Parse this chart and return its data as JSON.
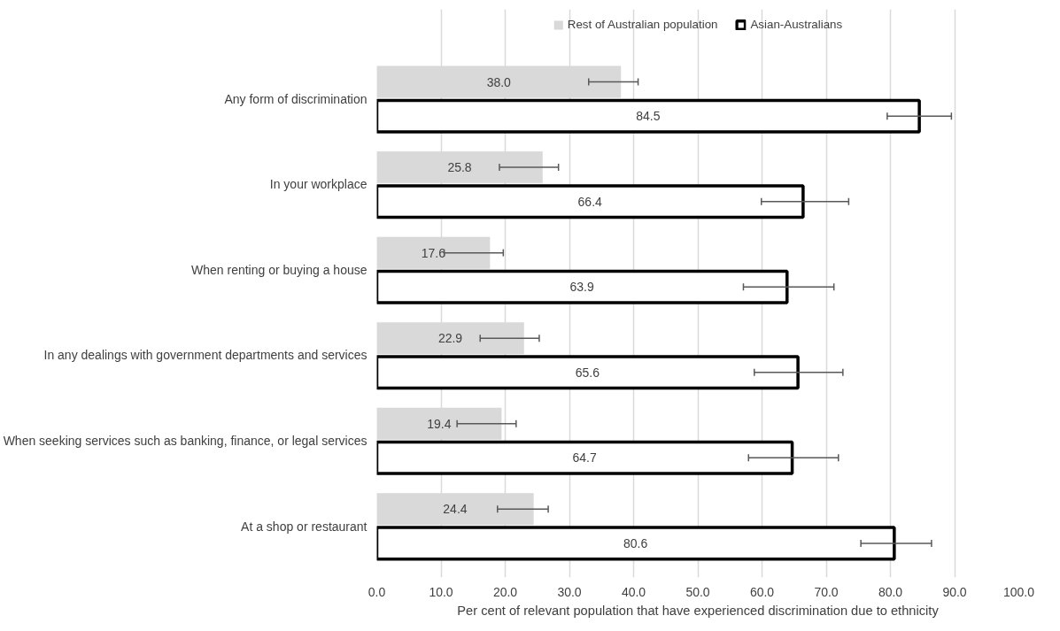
{
  "chart_data": {
    "type": "bar",
    "orientation": "horizontal",
    "xlabel": "Per cent of relevant population that have experienced discrimination due to ethnicity",
    "categories": [
      "Any form of discrimination",
      "In your workplace",
      "When renting or buying a house",
      "In any dealings with government departments and services",
      "When seeking services such as banking, finance, or legal services",
      "At a shop or restaurant"
    ],
    "series": [
      {
        "name": "Rest of Australian population",
        "color": "#d9d9d9",
        "values": [
          38.0,
          25.8,
          17.6,
          22.9,
          19.4,
          24.4
        ],
        "value_labels": [
          "38.0",
          "25.8",
          "17.6",
          "22.9",
          "19.4",
          "24.4"
        ],
        "errors": [
          [
            33.0,
            40.7
          ],
          [
            19.1,
            28.3
          ],
          [
            10.5,
            19.7
          ],
          [
            16.1,
            25.3
          ],
          [
            12.5,
            21.7
          ],
          [
            18.8,
            26.7
          ]
        ]
      },
      {
        "name": "Asian-Australians",
        "color": "#000000",
        "values": [
          84.5,
          66.4,
          63.9,
          65.6,
          64.7,
          80.6
        ],
        "value_labels": [
          "84.5",
          "66.4",
          "63.9",
          "65.6",
          "64.7",
          "80.6"
        ],
        "errors": [
          [
            79.5,
            89.5
          ],
          [
            59.9,
            73.5
          ],
          [
            57.1,
            71.2
          ],
          [
            58.8,
            72.6
          ],
          [
            57.9,
            71.9
          ],
          [
            75.4,
            86.4
          ]
        ]
      }
    ],
    "xlim": [
      0,
      100
    ],
    "xticks": [
      {
        "value": 0,
        "label": "0.0"
      },
      {
        "value": 10,
        "label": "10.0"
      },
      {
        "value": 20,
        "label": "20.0"
      },
      {
        "value": 30,
        "label": "30.0"
      },
      {
        "value": 40,
        "label": "40.0"
      },
      {
        "value": 50,
        "label": "50.0"
      },
      {
        "value": 60,
        "label": "60.0"
      },
      {
        "value": 70,
        "label": "70.0"
      },
      {
        "value": 80,
        "label": "80.0"
      },
      {
        "value": 90,
        "label": "90.0"
      },
      {
        "value": 100,
        "label": "100.0"
      }
    ],
    "grid": "x",
    "legend": "top"
  }
}
